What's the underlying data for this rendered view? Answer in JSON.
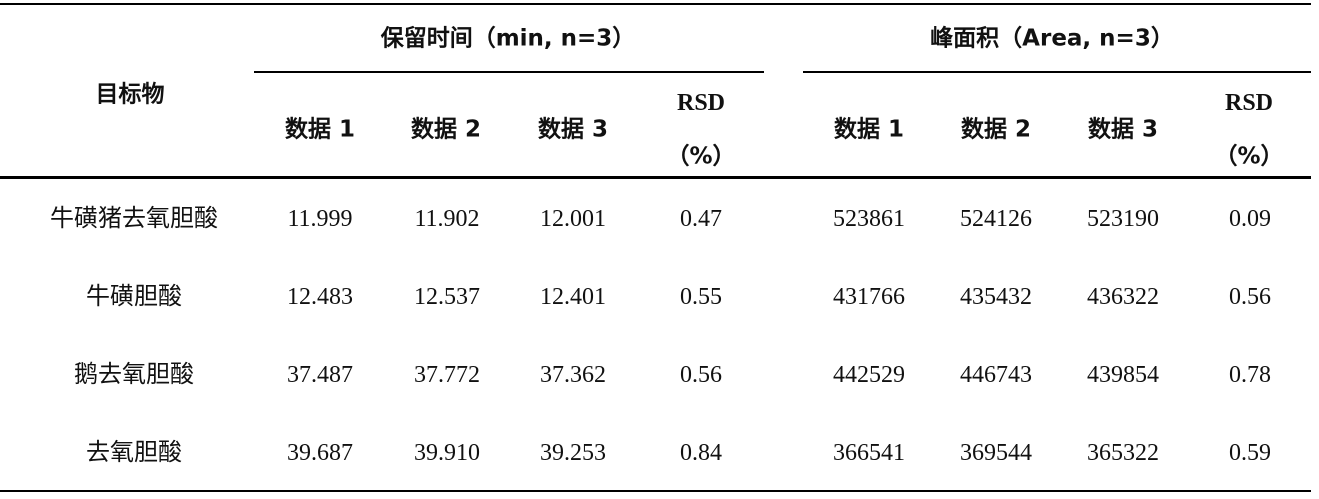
{
  "table": {
    "row_header": "目标物",
    "group_retention": "保留时间（min, n=3）",
    "group_area": "峰面积（Area, n=3）",
    "sub_headers": {
      "data1": "数据 1",
      "data2": "数据 2",
      "data3": "数据 3",
      "rsd": "RSD",
      "rsd_unit": "（%）"
    },
    "rows": [
      {
        "name": "牛磺猪去氧胆酸",
        "rt": [
          "11.999",
          "11.902",
          "12.001"
        ],
        "rt_rsd": "0.47",
        "area": [
          "523861",
          "524126",
          "523190"
        ],
        "area_rsd": "0.09"
      },
      {
        "name": "牛磺胆酸",
        "rt": [
          "12.483",
          "12.537",
          "12.401"
        ],
        "rt_rsd": "0.55",
        "area": [
          "431766",
          "435432",
          "436322"
        ],
        "area_rsd": "0.56"
      },
      {
        "name": "鹅去氧胆酸",
        "rt": [
          "37.487",
          "37.772",
          "37.362"
        ],
        "rt_rsd": "0.56",
        "area": [
          "442529",
          "446743",
          "439854"
        ],
        "area_rsd": "0.78"
      },
      {
        "name": "去氧胆酸",
        "rt": [
          "39.687",
          "39.910",
          "39.253"
        ],
        "rt_rsd": "0.84",
        "area": [
          "366541",
          "369544",
          "365322"
        ],
        "area_rsd": "0.59"
      }
    ]
  }
}
